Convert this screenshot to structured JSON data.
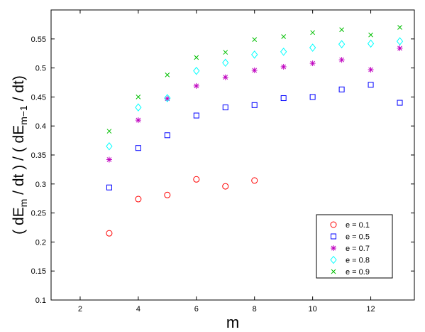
{
  "chart_data": {
    "type": "scatter",
    "xlabel": "m",
    "ylabel_parts": {
      "open": "( dE",
      "sub1": "m",
      "mid": " / dt ) / ( dE",
      "sub2": "m−1",
      "close": " / dt)"
    },
    "xlim": [
      1,
      13.5
    ],
    "ylim": [
      0.1,
      0.6
    ],
    "xticks": [
      2,
      4,
      6,
      8,
      10,
      12
    ],
    "yticks": [
      0.1,
      0.15,
      0.2,
      0.25,
      0.3,
      0.35,
      0.4,
      0.45,
      0.5,
      0.55
    ],
    "xtick_labels": [
      "2",
      "4",
      "6",
      "8",
      "10",
      "12"
    ],
    "ytick_labels": [
      "0.1",
      "0.15",
      "0.2",
      "0.25",
      "0.3",
      "0.35",
      "0.4",
      "0.45",
      "0.5",
      "0.55"
    ],
    "grid": false,
    "legend_position": "bottom-right",
    "series": [
      {
        "name": "e = 0.1",
        "marker": "circle",
        "color": "#ff0000",
        "points": [
          [
            3,
            0.215
          ],
          [
            4,
            0.274
          ],
          [
            5,
            0.281
          ],
          [
            6,
            0.308
          ],
          [
            7,
            0.296
          ],
          [
            8,
            0.306
          ]
        ]
      },
      {
        "name": "e = 0.5",
        "marker": "square",
        "color": "#0000ff",
        "points": [
          [
            3,
            0.294
          ],
          [
            4,
            0.362
          ],
          [
            5,
            0.384
          ],
          [
            6,
            0.418
          ],
          [
            7,
            0.432
          ],
          [
            8,
            0.436
          ],
          [
            9,
            0.448
          ],
          [
            10,
            0.45
          ],
          [
            11,
            0.463
          ],
          [
            12,
            0.471
          ],
          [
            13,
            0.44
          ]
        ]
      },
      {
        "name": "e = 0.7",
        "marker": "asterisk",
        "color": "#bf00bf",
        "points": [
          [
            3,
            0.342
          ],
          [
            4,
            0.41
          ],
          [
            5,
            0.447
          ],
          [
            6,
            0.469
          ],
          [
            7,
            0.484
          ],
          [
            8,
            0.496
          ],
          [
            9,
            0.502
          ],
          [
            10,
            0.508
          ],
          [
            11,
            0.514
          ],
          [
            12,
            0.497
          ],
          [
            13,
            0.534
          ]
        ]
      },
      {
        "name": "e = 0.8",
        "marker": "diamond",
        "color": "#00ffff",
        "points": [
          [
            3,
            0.365
          ],
          [
            4,
            0.432
          ],
          [
            5,
            0.448
          ],
          [
            6,
            0.495
          ],
          [
            7,
            0.509
          ],
          [
            8,
            0.523
          ],
          [
            9,
            0.528
          ],
          [
            10,
            0.535
          ],
          [
            11,
            0.541
          ],
          [
            12,
            0.542
          ],
          [
            13,
            0.546
          ]
        ]
      },
      {
        "name": "e = 0.9",
        "marker": "x",
        "color": "#00bf00",
        "points": [
          [
            3,
            0.391
          ],
          [
            4,
            0.45
          ],
          [
            5,
            0.488
          ],
          [
            6,
            0.518
          ],
          [
            7,
            0.527
          ],
          [
            8,
            0.549
          ],
          [
            9,
            0.554
          ],
          [
            10,
            0.561
          ],
          [
            11,
            0.566
          ],
          [
            12,
            0.557
          ],
          [
            13,
            0.57
          ]
        ]
      }
    ]
  }
}
